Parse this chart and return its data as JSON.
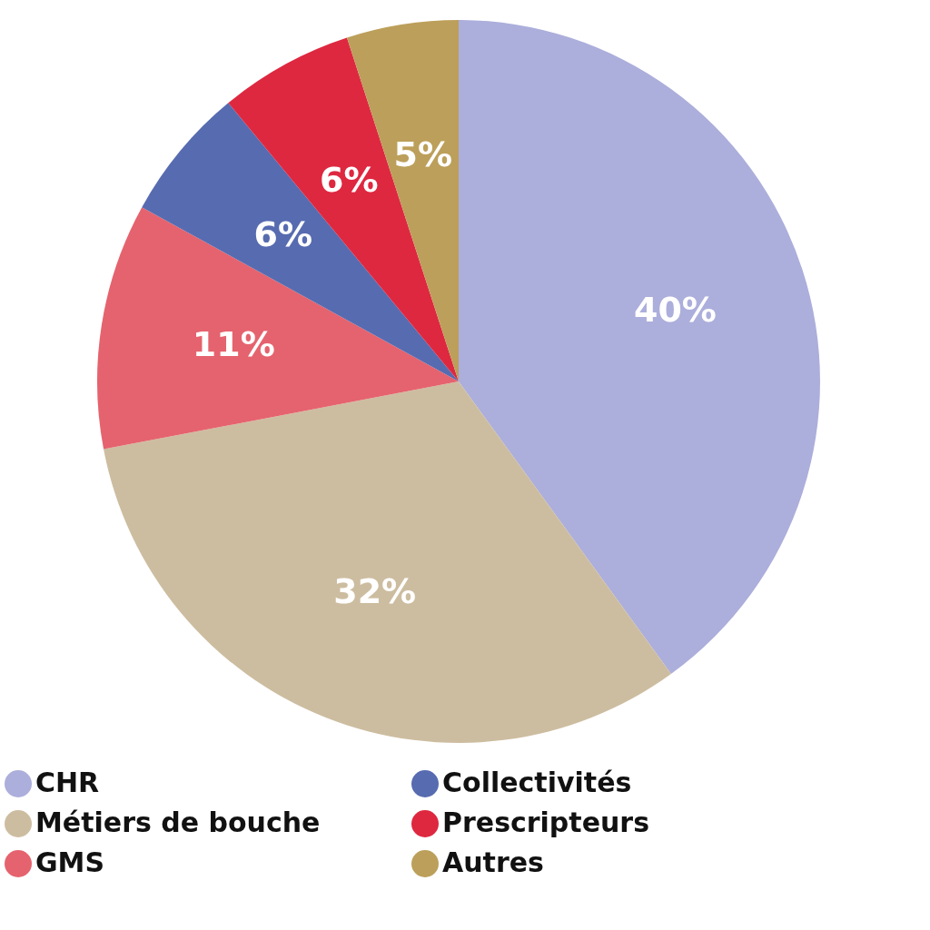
{
  "chart_data": {
    "type": "pie",
    "categories": [
      "CHR",
      "Métiers de bouche",
      "GMS",
      "Collectivités",
      "Prescripteurs",
      "Autres"
    ],
    "values": [
      40,
      32,
      11,
      6,
      6,
      5
    ],
    "value_labels": [
      "40%",
      "32%",
      "11%",
      "6%",
      "6%",
      "5%"
    ],
    "colors": [
      "#acaedb",
      "#cdbda0",
      "#e5636e",
      "#576bb0",
      "#de2840",
      "#bc9f5a"
    ],
    "legend": "bottom"
  }
}
